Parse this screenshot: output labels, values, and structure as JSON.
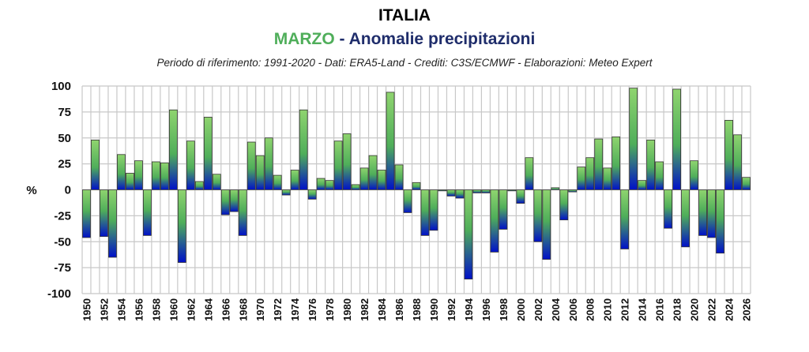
{
  "chart_data": {
    "type": "bar",
    "title": "ITALIA",
    "subtitle_month": "MARZO",
    "subtitle_rest": " - Anomalie precipitazioni",
    "credits": "Periodo di riferimento: 1991-2020 - Dati: ERA5-Land - Crediti: C3S/ECMWF - Elaborazioni: Meteo Expert",
    "xlabel": "",
    "ylabel": "%",
    "ylim": [
      -100,
      100
    ],
    "yticks": [
      100,
      75,
      50,
      25,
      0,
      -25,
      -50,
      -75,
      -100
    ],
    "grid": true,
    "colors": {
      "top": "#7ccc6a",
      "bottom": "#0012c8",
      "month": "#4fae5a",
      "title_rest": "#1f2d6b"
    },
    "categories": [
      1950,
      1951,
      1952,
      1953,
      1954,
      1955,
      1956,
      1957,
      1958,
      1959,
      1960,
      1961,
      1962,
      1963,
      1964,
      1965,
      1966,
      1967,
      1968,
      1969,
      1970,
      1971,
      1972,
      1973,
      1974,
      1975,
      1976,
      1977,
      1978,
      1979,
      1980,
      1981,
      1982,
      1983,
      1984,
      1985,
      1986,
      1987,
      1988,
      1989,
      1990,
      1991,
      1992,
      1993,
      1994,
      1995,
      1996,
      1997,
      1998,
      1999,
      2000,
      2001,
      2002,
      2003,
      2004,
      2005,
      2006,
      2007,
      2008,
      2009,
      2010,
      2011,
      2012,
      2013,
      2014,
      2015,
      2016,
      2017,
      2018,
      2019,
      2020,
      2021,
      2022,
      2023,
      2024,
      2025,
      2026
    ],
    "xtick_labels": [
      "1950",
      "1952",
      "1954",
      "1956",
      "1958",
      "1960",
      "1962",
      "1964",
      "1966",
      "1968",
      "1970",
      "1972",
      "1974",
      "1976",
      "1978",
      "1980",
      "1982",
      "1984",
      "1986",
      "1988",
      "1990",
      "1992",
      "1994",
      "1996",
      "1998",
      "2000",
      "2002",
      "2004",
      "2006",
      "2008",
      "2010",
      "2012",
      "2014",
      "2016",
      "2018",
      "2020",
      "2022",
      "2024",
      "2026"
    ],
    "values": [
      -46,
      48,
      -45,
      -65,
      34,
      16,
      28,
      -44,
      27,
      26,
      77,
      -70,
      47,
      8,
      70,
      15,
      -24,
      -21,
      -44,
      46,
      33,
      50,
      14,
      -5,
      19,
      77,
      -9,
      11,
      9,
      47,
      54,
      5,
      21,
      33,
      19,
      94,
      24,
      -22,
      7,
      -44,
      -39,
      -1,
      -6,
      -8,
      -86,
      -3,
      -3,
      -60,
      -38,
      -1,
      -13,
      31,
      -50,
      -67,
      2,
      -29,
      -2,
      22,
      31,
      49,
      21,
      51,
      -57,
      98,
      9,
      48,
      27,
      -37,
      97,
      -55,
      28,
      -44,
      -46,
      -61,
      67,
      53,
      12
    ]
  }
}
